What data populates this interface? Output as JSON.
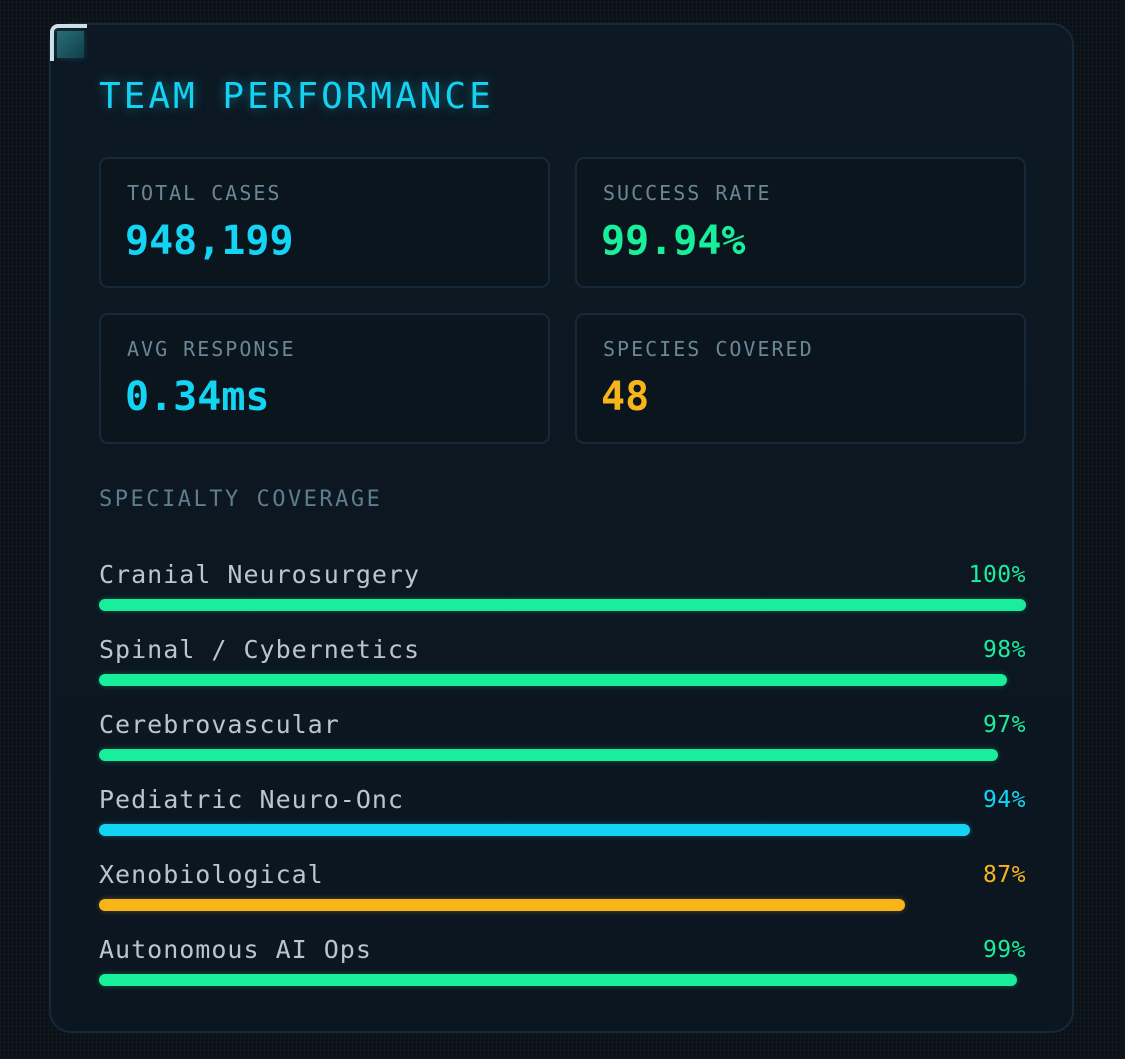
{
  "panel": {
    "title": "TEAM PERFORMANCE"
  },
  "stats": [
    {
      "label": "TOTAL CASES",
      "value": "948,199",
      "color": "#14d4f4"
    },
    {
      "label": "SUCCESS RATE",
      "value": "99.94%",
      "color": "#19ef9a"
    },
    {
      "label": "AVG RESPONSE",
      "value": "0.34ms",
      "color": "#14d4f4"
    },
    {
      "label": "SPECIES COVERED",
      "value": "48",
      "color": "#f7b51a"
    }
  ],
  "coverage": {
    "label": "SPECIALTY COVERAGE",
    "items": [
      {
        "name": "Cranial Neurosurgery",
        "pct_label": "100%",
        "value": 100,
        "color": "#19ef9a"
      },
      {
        "name": "Spinal / Cybernetics",
        "pct_label": "98%",
        "value": 98,
        "color": "#19ef9a"
      },
      {
        "name": "Cerebrovascular",
        "pct_label": "97%",
        "value": 97,
        "color": "#19ef9a"
      },
      {
        "name": "Pediatric Neuro-Onc",
        "pct_label": "94%",
        "value": 94,
        "color": "#14d4f4"
      },
      {
        "name": "Xenobiological",
        "pct_label": "87%",
        "value": 87,
        "color": "#f7b51a"
      },
      {
        "name": "Autonomous AI Ops",
        "pct_label": "99%",
        "value": 99,
        "color": "#19ef9a"
      }
    ]
  }
}
